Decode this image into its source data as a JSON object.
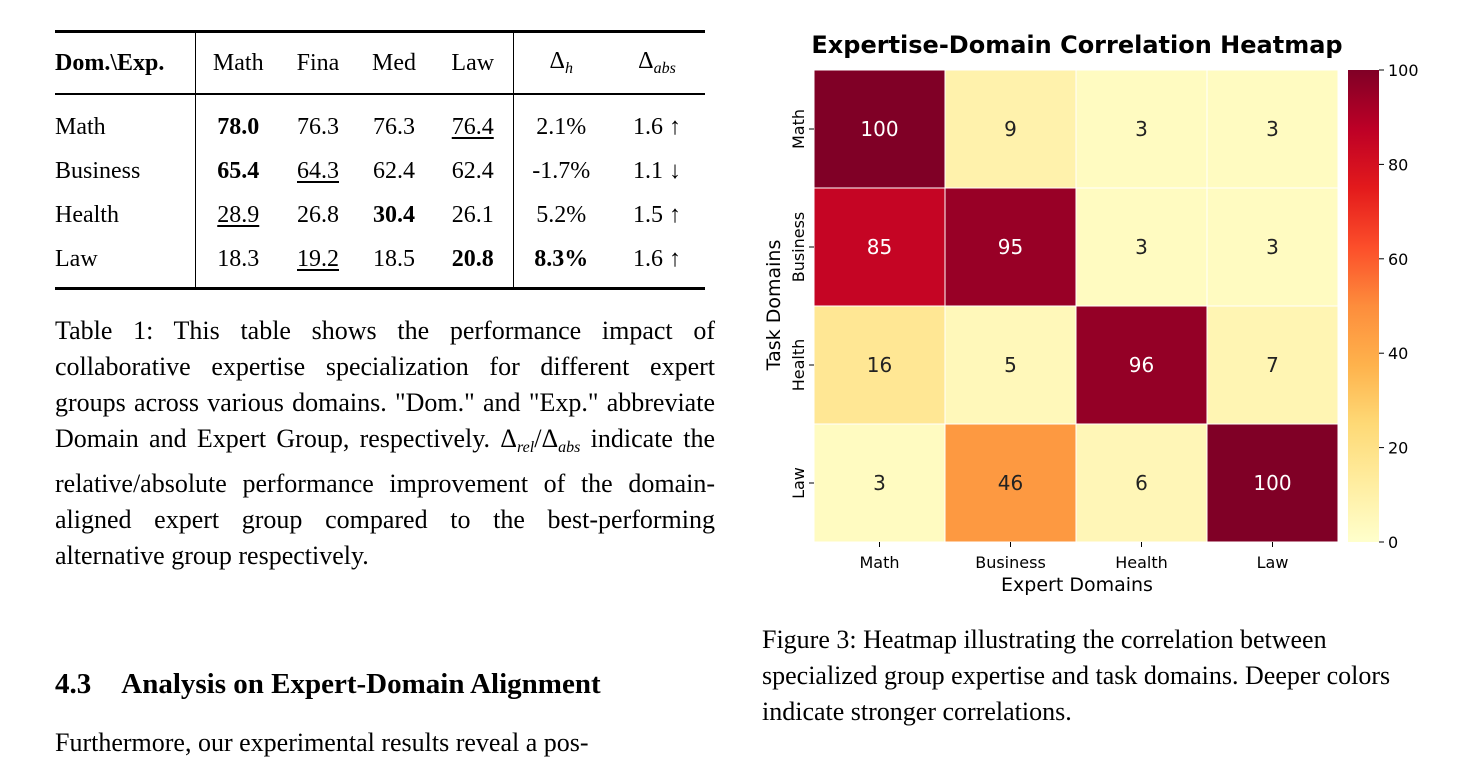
{
  "table": {
    "header": {
      "corner": "Dom.\\Exp.",
      "experts": [
        "Math",
        "Fina",
        "Med",
        "Law"
      ],
      "delta_h_symbol": "Δ",
      "delta_h_sub": "h",
      "delta_abs_symbol": "Δ",
      "delta_abs_sub": "abs"
    },
    "rows": [
      {
        "domain": "Math",
        "values": [
          "78.0",
          "76.3",
          "76.3",
          "76.4"
        ],
        "delta_h": "2.1%",
        "delta_abs": "1.6 ↑"
      },
      {
        "domain": "Business",
        "values": [
          "65.4",
          "64.3",
          "62.4",
          "62.4"
        ],
        "delta_h": "-1.7%",
        "delta_abs": "1.1 ↓"
      },
      {
        "domain": "Health",
        "values": [
          "28.9",
          "26.8",
          "30.4",
          "26.1"
        ],
        "delta_h": "5.2%",
        "delta_abs": "1.5 ↑"
      },
      {
        "domain": "Law",
        "values": [
          "18.3",
          "19.2",
          "18.5",
          "20.8"
        ],
        "delta_h": "8.3%",
        "delta_abs": "1.6 ↑"
      }
    ]
  },
  "table_caption": {
    "part1": "Table 1: This table shows the performance impact of collaborative expertise specialization for different expert groups across various domains. \"Dom.\" and \"Exp.\" abbreviate Domain and Expert Group, respectively. ",
    "delta_rel_symbol": "Δ",
    "delta_rel_sub": "rel",
    "slash": "/",
    "delta_abs_symbol": "Δ",
    "delta_abs_sub": "abs",
    "part2": " indicate the relative/absolute performance improvement of the domain-aligned expert group compared to the best-performing alternative group respectively."
  },
  "section": {
    "number": "4.3",
    "title": "Analysis on Expert-Domain Alignment"
  },
  "body_text": "Furthermore, our experimental results reveal a pos-",
  "figure_caption": "Figure 3: Heatmap illustrating the correlation between specialized group expertise and task domains. Deeper colors indicate stronger correlations.",
  "chart_data": {
    "type": "heatmap",
    "title": "Expertise-Domain Correlation Heatmap",
    "xlabel": "Expert Domains",
    "ylabel": "Task Domains",
    "x_categories": [
      "Math",
      "Business",
      "Health",
      "Law"
    ],
    "y_categories": [
      "Math",
      "Business",
      "Health",
      "Law"
    ],
    "values": [
      [
        100,
        9,
        3,
        3
      ],
      [
        85,
        95,
        3,
        3
      ],
      [
        16,
        5,
        96,
        7
      ],
      [
        3,
        46,
        6,
        100
      ]
    ],
    "colorbar": {
      "min": 0,
      "max": 100,
      "ticks": [
        0,
        20,
        40,
        60,
        80,
        100
      ],
      "colormap": "YlOrRd"
    }
  }
}
